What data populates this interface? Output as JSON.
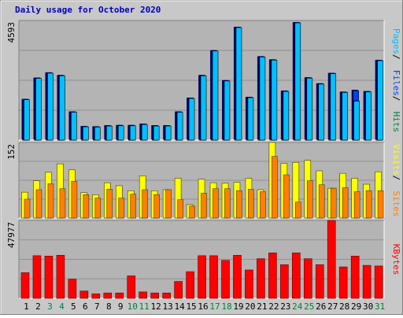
{
  "page": {
    "title": "Daily usage for October 2020",
    "left_max_labels": [
      "4593",
      "152",
      "47977"
    ]
  },
  "colors": {
    "background": "#c8c8c8",
    "panel": "#b4b4b4",
    "grid": "#909090",
    "title": "#0000c0",
    "pages": "#00c0ff",
    "files": "#0040ff",
    "hits": "#008040",
    "visits": "#ffff00",
    "sites": "#ff8000",
    "kbytes": "#ff0000",
    "weekend_label": "#008040",
    "weekday_label": "#000000"
  },
  "chart_data": [
    {
      "type": "bar",
      "name": "usage-top",
      "max_label": "4593",
      "ylim": [
        0,
        4593
      ],
      "legend_placement": "right-vertical",
      "categories": [
        "1",
        "2",
        "3",
        "4",
        "5",
        "6",
        "7",
        "8",
        "9",
        "10",
        "11",
        "12",
        "13",
        "14",
        "15",
        "16",
        "17",
        "18",
        "19",
        "20",
        "21",
        "22",
        "23",
        "24",
        "25",
        "26",
        "27",
        "28",
        "29",
        "30",
        "31"
      ],
      "series": [
        {
          "name": "Pages",
          "color": "#00c0ff",
          "values": [
            1550,
            2370,
            2570,
            2470,
            1070,
            510,
            500,
            540,
            550,
            550,
            600,
            540,
            540,
            1070,
            1600,
            2470,
            3420,
            2270,
            4320,
            1630,
            3190,
            3070,
            1870,
            4500,
            2380,
            2150,
            2550,
            1830,
            1500,
            1850,
            3050
          ]
        },
        {
          "name": "Files",
          "color": "#0040ff",
          "values": [
            1550,
            2370,
            2570,
            2470,
            1070,
            510,
            500,
            540,
            550,
            550,
            600,
            540,
            540,
            1070,
            1600,
            2470,
            3420,
            2270,
            4320,
            1630,
            3190,
            3070,
            1870,
            4500,
            2380,
            2150,
            2550,
            1830,
            1900,
            1850,
            3050
          ]
        },
        {
          "name": "Hits",
          "color": "#008040",
          "values": [
            1550,
            2370,
            2570,
            2470,
            1070,
            510,
            500,
            540,
            550,
            550,
            600,
            540,
            540,
            1070,
            1600,
            2470,
            3420,
            2270,
            4320,
            1630,
            3190,
            3070,
            1870,
            4500,
            2380,
            2150,
            2550,
            1830,
            1900,
            1850,
            3050
          ]
        }
      ]
    },
    {
      "type": "bar",
      "name": "usage-middle",
      "max_label": "152",
      "ylim": [
        0,
        152
      ],
      "legend_placement": "right-vertical",
      "categories": [
        "1",
        "2",
        "3",
        "4",
        "5",
        "6",
        "7",
        "8",
        "9",
        "10",
        "11",
        "12",
        "13",
        "14",
        "15",
        "16",
        "17",
        "18",
        "19",
        "20",
        "21",
        "22",
        "23",
        "24",
        "25",
        "26",
        "27",
        "28",
        "29",
        "30",
        "31"
      ],
      "series": [
        {
          "name": "Visits",
          "color": "#ffff00",
          "values": [
            52,
            75,
            92,
            109,
            97,
            51,
            47,
            71,
            65,
            55,
            85,
            55,
            57,
            80,
            27,
            78,
            71,
            70,
            72,
            80,
            57,
            152,
            110,
            112,
            116,
            95,
            60,
            90,
            80,
            68,
            93
          ]
        },
        {
          "name": "Sites",
          "color": "#ff8000",
          "values": [
            38,
            57,
            69,
            59,
            74,
            47,
            40,
            58,
            40,
            48,
            57,
            47,
            57,
            37,
            24,
            50,
            59,
            59,
            55,
            58,
            53,
            124,
            87,
            32,
            75,
            67,
            60,
            61,
            53,
            55,
            55
          ]
        }
      ]
    },
    {
      "type": "bar",
      "name": "usage-bottom",
      "max_label": "47977",
      "ylim": [
        0,
        47977
      ],
      "legend_placement": "right-vertical",
      "categories": [
        "1",
        "2",
        "3",
        "4",
        "5",
        "6",
        "7",
        "8",
        "9",
        "10",
        "11",
        "12",
        "13",
        "14",
        "15",
        "16",
        "17",
        "18",
        "19",
        "20",
        "21",
        "22",
        "23",
        "24",
        "25",
        "26",
        "27",
        "28",
        "29",
        "30",
        "31"
      ],
      "weekend_days": [
        "3",
        "4",
        "10",
        "11",
        "17",
        "18",
        "24",
        "25",
        "31"
      ],
      "series": [
        {
          "name": "KBytes",
          "color": "#ff0000",
          "values": [
            15770,
            26240,
            25990,
            26500,
            11770,
            4480,
            2780,
            3300,
            3300,
            13810,
            3930,
            3300,
            3300,
            10390,
            16400,
            26240,
            26240,
            23360,
            26500,
            17460,
            24380,
            28000,
            20720,
            28000,
            24380,
            20720,
            47977,
            19350,
            25990,
            20300,
            19910
          ]
        }
      ]
    }
  ]
}
